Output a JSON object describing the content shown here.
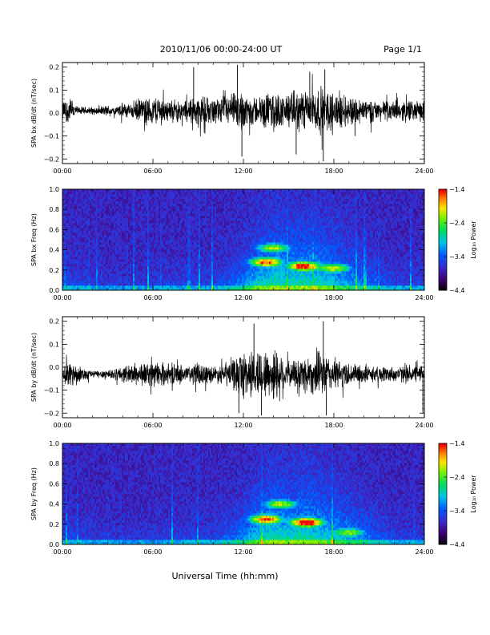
{
  "header": {
    "title": "2010/11/06  00:00-24:00 UT",
    "page": "Page 1/1"
  },
  "xlabel": "Universal Time (hh:mm)",
  "x_ticks": [
    "00:00",
    "06:00",
    "12:00",
    "18:00",
    "24:00"
  ],
  "chart_data": [
    {
      "type": "line",
      "ylabel": "SPA bx dB/dt (nT/sec)",
      "ylim": [
        -0.22,
        0.22
      ],
      "yticks": [
        {
          "v": 0.2,
          "label": "0.2"
        },
        {
          "v": 0.1,
          "label": "0.1"
        },
        {
          "v": 0.0,
          "label": "0.0"
        },
        {
          "v": -0.1,
          "label": "−0.1"
        },
        {
          "v": -0.2,
          "label": "−0.2"
        }
      ],
      "xlim": [
        0,
        24
      ],
      "series": [
        {
          "x": [
            0,
            0.5,
            1,
            1.5,
            2,
            2.5,
            3,
            3.5,
            4,
            4.5,
            5,
            5.5,
            6,
            6.5,
            7,
            7.5,
            8,
            8.5,
            9,
            9.5,
            10,
            10.5,
            11,
            11.5,
            12,
            12.5,
            13,
            13.5,
            14,
            14.5,
            15,
            15.5,
            16,
            16.5,
            17,
            17.5,
            18,
            18.5,
            19,
            19.5,
            20,
            20.5,
            21,
            21.5,
            22,
            22.5,
            23,
            23.5,
            24
          ],
          "amp": [
            0.05,
            0.07,
            0.02,
            0.02,
            0.02,
            0.02,
            0.03,
            0.02,
            0.04,
            0.04,
            0.06,
            0.06,
            0.07,
            0.08,
            0.05,
            0.06,
            0.05,
            0.07,
            0.08,
            0.07,
            0.06,
            0.07,
            0.08,
            0.09,
            0.1,
            0.08,
            0.07,
            0.09,
            0.1,
            0.08,
            0.09,
            0.1,
            0.11,
            0.11,
            0.12,
            0.11,
            0.1,
            0.09,
            0.08,
            0.07,
            0.06,
            0.06,
            0.05,
            0.05,
            0.05,
            0.05,
            0.06,
            0.05,
            0.05
          ],
          "center": 0.01
        }
      ],
      "spikes": [
        {
          "x": 8.7,
          "y": 0.2
        },
        {
          "x": 11.6,
          "y": 0.21
        },
        {
          "x": 11.9,
          "y": -0.19
        },
        {
          "x": 15.5,
          "y": -0.18
        },
        {
          "x": 16.4,
          "y": 0.18
        },
        {
          "x": 17.3,
          "y": -0.21
        },
        {
          "x": 17.4,
          "y": 0.19
        },
        {
          "x": 19.4,
          "y": -0.1
        }
      ]
    },
    {
      "type": "heatmap",
      "ylabel": "SPA bx Freq (Hz)",
      "ylim": [
        0.0,
        1.0
      ],
      "yticks": [
        {
          "v": 0.0,
          "label": "0.0"
        },
        {
          "v": 0.2,
          "label": "0.2"
        },
        {
          "v": 0.4,
          "label": "0.4"
        },
        {
          "v": 0.6,
          "label": "0.6"
        },
        {
          "v": 0.8,
          "label": "0.8"
        },
        {
          "v": 1.0,
          "label": "1.0"
        }
      ],
      "xlim": [
        0,
        24
      ],
      "colorbar": {
        "label": "Log₁₀ Power",
        "range": [
          -4.4,
          -1.4
        ],
        "ticks": [
          {
            "v": -1.4,
            "label": "−1.4"
          },
          {
            "v": -2.4,
            "label": "−2.4"
          },
          {
            "v": -3.4,
            "label": "−3.4"
          },
          {
            "v": -4.4,
            "label": "−4.4"
          }
        ]
      },
      "features": [
        {
          "t": 13.5,
          "f": 0.28,
          "p": -1.8
        },
        {
          "t": 16.0,
          "f": 0.24,
          "p": -1.6
        },
        {
          "t": 14.0,
          "f": 0.42,
          "p": -2.4
        },
        {
          "t": 18.0,
          "f": 0.22,
          "p": -2.3
        }
      ]
    },
    {
      "type": "line",
      "ylabel": "SPA by dB/dt (nT/sec)",
      "ylim": [
        -0.22,
        0.22
      ],
      "yticks": [
        {
          "v": 0.2,
          "label": "0.2"
        },
        {
          "v": 0.1,
          "label": "0.1"
        },
        {
          "v": 0.0,
          "label": "0.0"
        },
        {
          "v": -0.1,
          "label": "−0.1"
        },
        {
          "v": -0.2,
          "label": "−0.2"
        }
      ],
      "xlim": [
        0,
        24
      ],
      "series": [
        {
          "x": [
            0,
            0.5,
            1,
            1.5,
            2,
            2.5,
            3,
            3.5,
            4,
            4.5,
            5,
            5.5,
            6,
            6.5,
            7,
            7.5,
            8,
            8.5,
            9,
            9.5,
            10,
            10.5,
            11,
            11.5,
            12,
            12.5,
            13,
            13.5,
            14,
            14.5,
            15,
            15.5,
            16,
            16.5,
            17,
            17.5,
            18,
            18.5,
            19,
            19.5,
            20,
            20.5,
            21,
            21.5,
            22,
            22.5,
            23,
            23.5,
            24
          ],
          "amp": [
            0.04,
            0.08,
            0.04,
            0.03,
            0.02,
            0.02,
            0.03,
            0.03,
            0.04,
            0.05,
            0.06,
            0.06,
            0.06,
            0.06,
            0.05,
            0.05,
            0.05,
            0.05,
            0.06,
            0.05,
            0.04,
            0.05,
            0.07,
            0.09,
            0.13,
            0.12,
            0.13,
            0.12,
            0.14,
            0.13,
            0.06,
            0.08,
            0.1,
            0.1,
            0.11,
            0.1,
            0.08,
            0.07,
            0.06,
            0.05,
            0.05,
            0.04,
            0.04,
            0.04,
            0.04,
            0.04,
            0.05,
            0.04,
            0.04
          ],
          "center": -0.03
        }
      ],
      "spikes": [
        {
          "x": 11.7,
          "y": -0.2
        },
        {
          "x": 12.7,
          "y": 0.19
        },
        {
          "x": 13.2,
          "y": -0.21
        },
        {
          "x": 17.3,
          "y": 0.2
        },
        {
          "x": 17.5,
          "y": -0.21
        },
        {
          "x": 23.9,
          "y": -0.2
        }
      ]
    },
    {
      "type": "heatmap",
      "ylabel": "SPA by Freq (Hz)",
      "ylim": [
        0.0,
        1.0
      ],
      "yticks": [
        {
          "v": 0.0,
          "label": "0.0"
        },
        {
          "v": 0.2,
          "label": "0.2"
        },
        {
          "v": 0.4,
          "label": "0.4"
        },
        {
          "v": 0.6,
          "label": "0.6"
        },
        {
          "v": 0.8,
          "label": "0.8"
        },
        {
          "v": 1.0,
          "label": "1.0"
        }
      ],
      "xlim": [
        0,
        24
      ],
      "colorbar": {
        "label": "Log₁₀ Power",
        "range": [
          -4.4,
          -1.4
        ],
        "ticks": [
          {
            "v": -1.4,
            "label": "−1.4"
          },
          {
            "v": -2.4,
            "label": "−2.4"
          },
          {
            "v": -3.4,
            "label": "−3.4"
          },
          {
            "v": -4.4,
            "label": "−4.4"
          }
        ]
      },
      "features": [
        {
          "t": 13.5,
          "f": 0.25,
          "p": -1.8
        },
        {
          "t": 16.2,
          "f": 0.22,
          "p": -1.5
        },
        {
          "t": 14.5,
          "f": 0.4,
          "p": -2.4
        },
        {
          "t": 19.0,
          "f": 0.12,
          "p": -2.6
        }
      ]
    }
  ]
}
